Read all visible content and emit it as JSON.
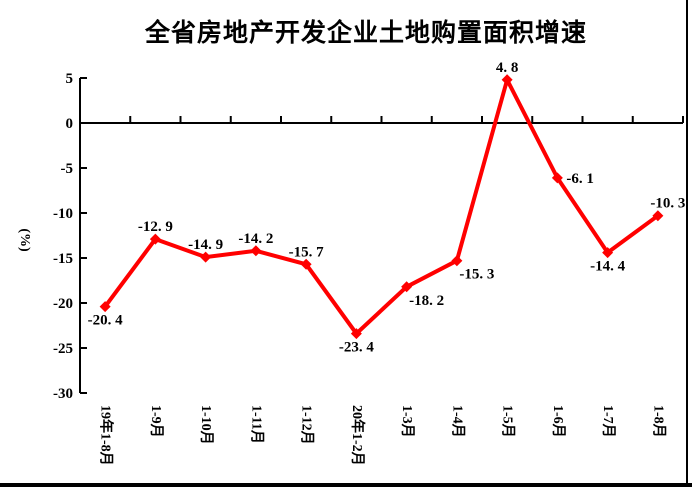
{
  "title": "全省房地产开发企业土地购置面积增速",
  "y_axis_unit": "(%)",
  "chart_data": {
    "type": "line",
    "title": "全省房地产开发企业土地购置面积增速",
    "ylabel": "(%)",
    "xlabel": "",
    "categories": [
      "19年1-8月",
      "1-9月",
      "1-10月",
      "1-11月",
      "1-12月",
      "20年1-2月",
      "1-3月",
      "1-4月",
      "1-5月",
      "1-6月",
      "1-7月",
      "1-8月"
    ],
    "values": [
      -20.4,
      -12.9,
      -14.9,
      -14.2,
      -15.7,
      -23.4,
      -18.2,
      -15.3,
      4.8,
      -6.1,
      -14.4,
      -10.3
    ],
    "point_labels": [
      "-20. 4",
      "-12. 9",
      "-14. 9",
      "-14. 2",
      "-15. 7",
      "-23. 4",
      "-18. 2",
      "-15. 3",
      "4. 8",
      "-6. 1",
      "-14. 4",
      "-10. 3"
    ],
    "label_positions": [
      "below",
      "above",
      "above",
      "above",
      "above",
      "below",
      "below-right",
      "below-right",
      "above",
      "right",
      "below",
      "above-right"
    ],
    "yticks": [
      5,
      0,
      -5,
      -10,
      -15,
      -20,
      -25,
      -30
    ],
    "ylim": [
      -30,
      5
    ],
    "grid": false,
    "legend": "none",
    "marker": "diamond",
    "line_color": "#ff0000",
    "axis_color": "#000000",
    "label_color": "#000000"
  }
}
